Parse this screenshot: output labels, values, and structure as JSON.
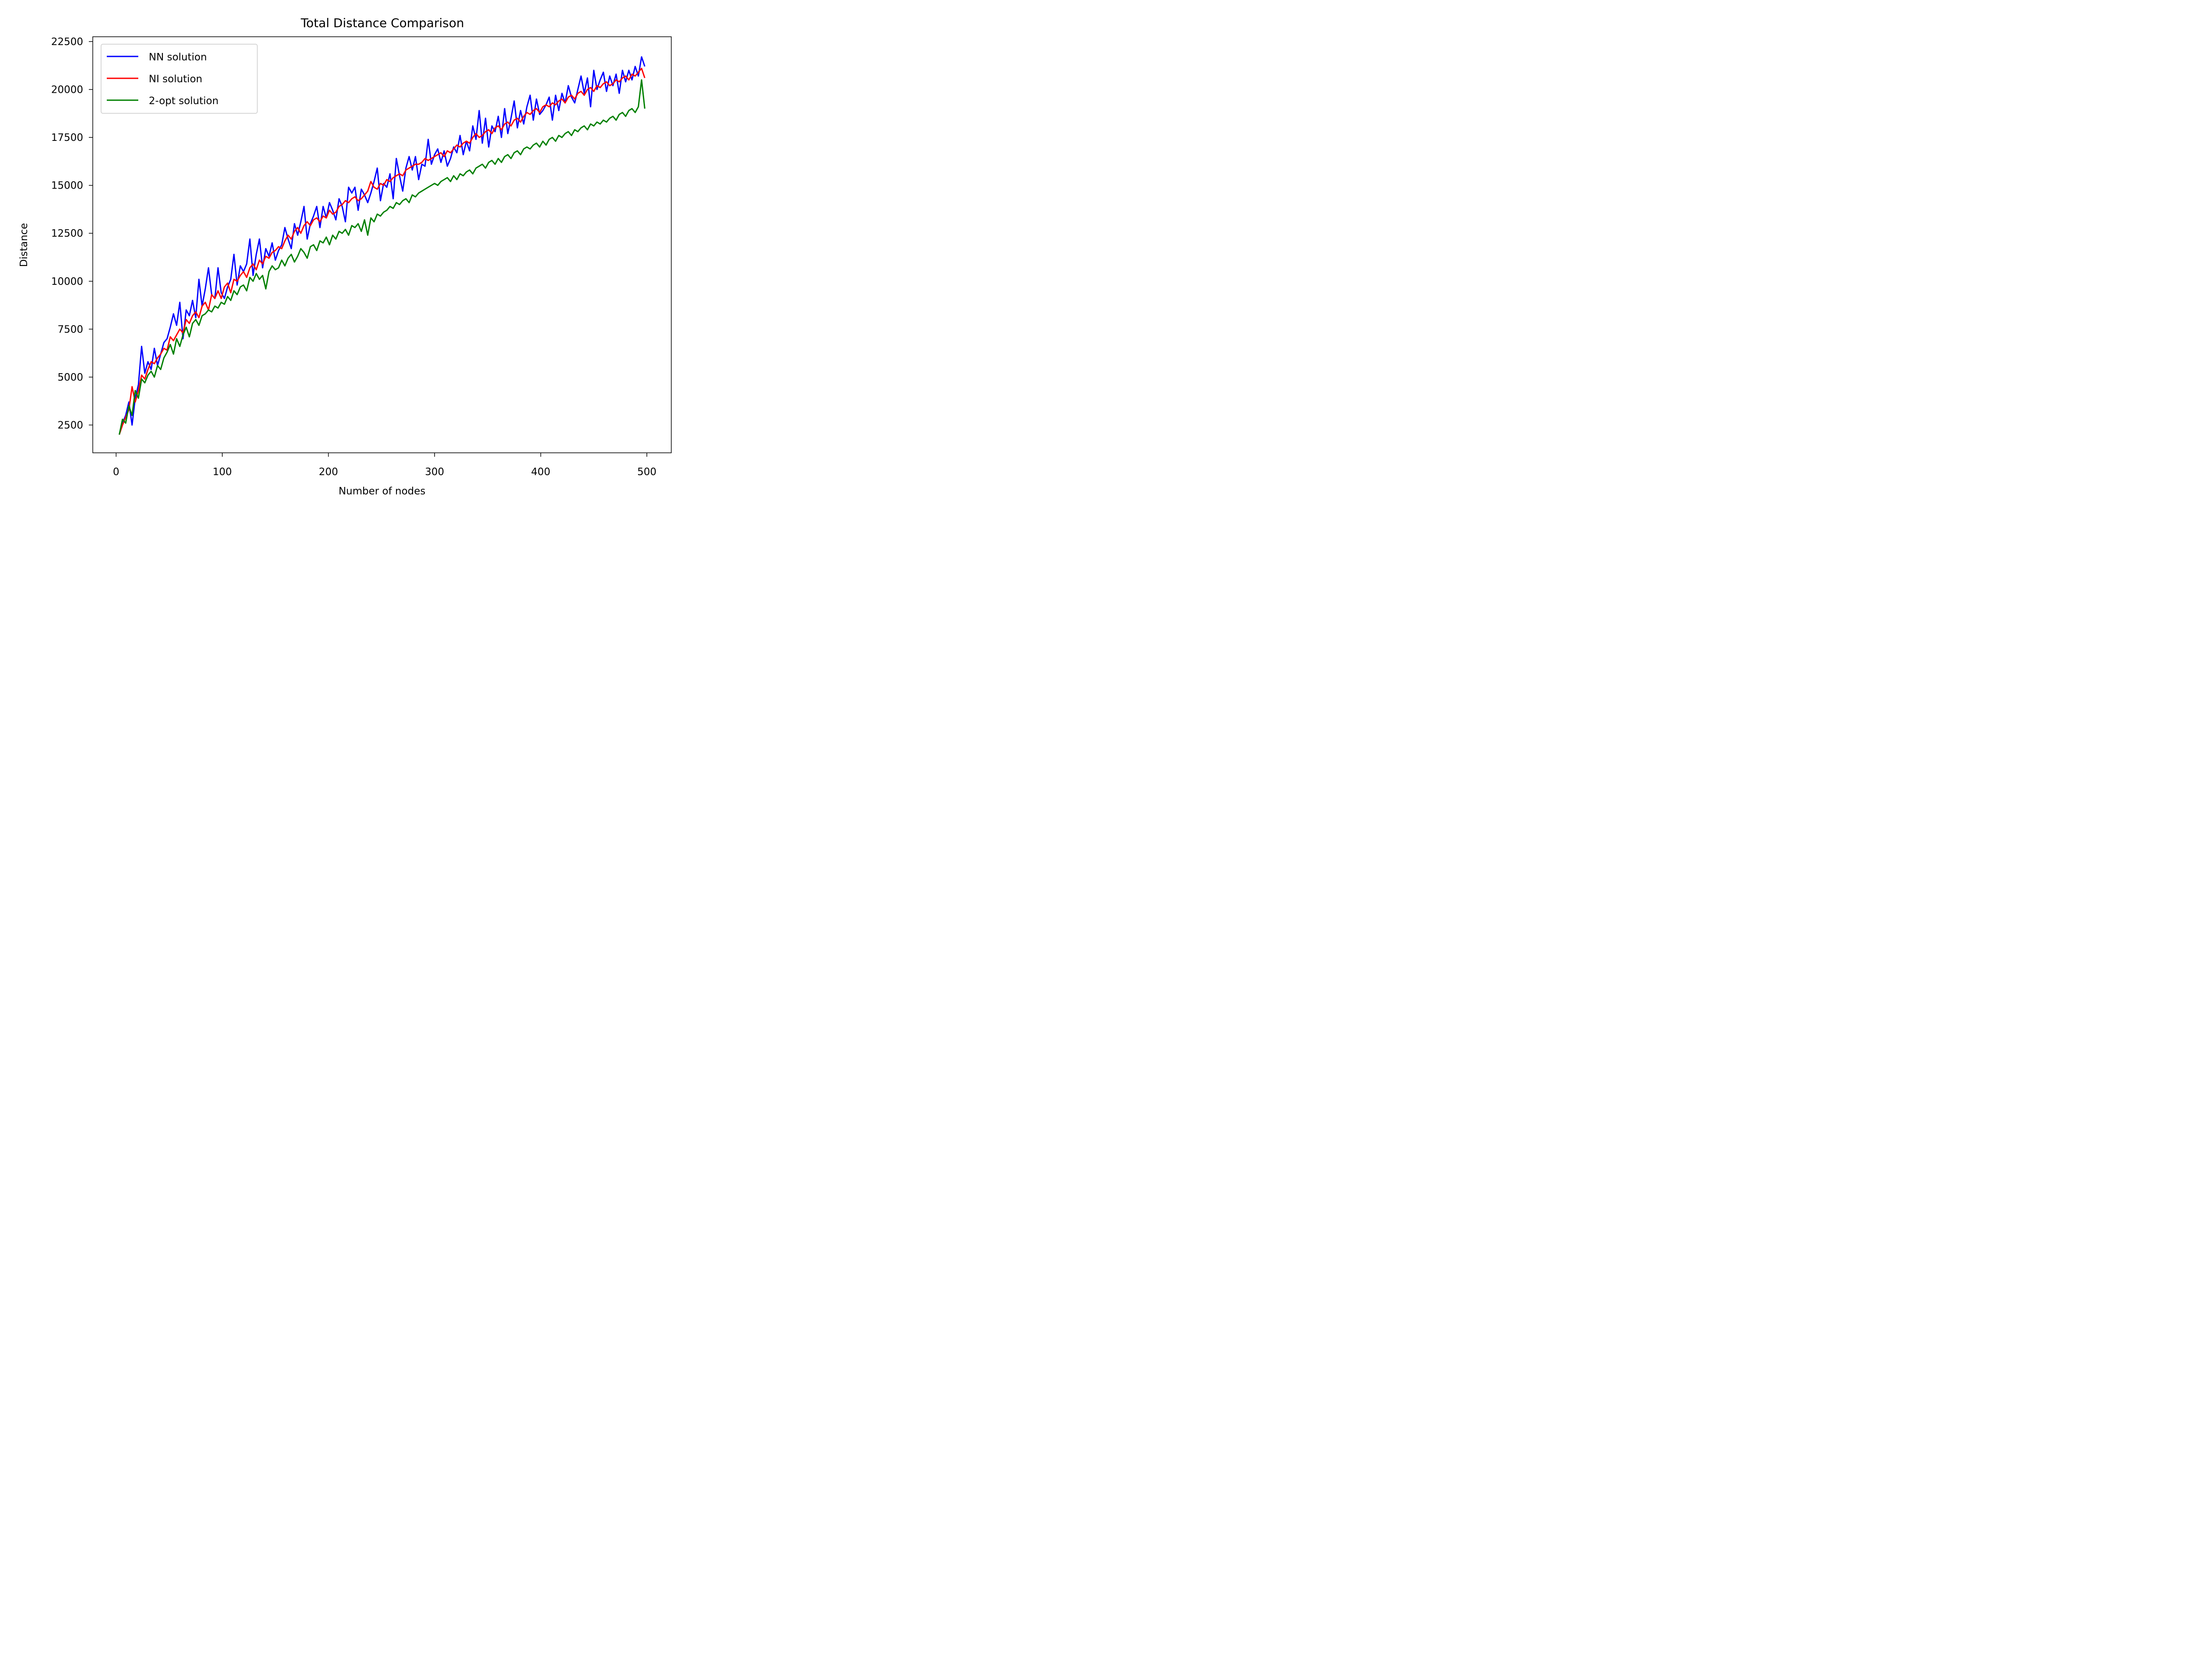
{
  "chart_data": {
    "type": "line",
    "title": "Total Distance Comparison",
    "xlabel": "Number of nodes",
    "ylabel": "Distance",
    "xlim": [
      -22,
      523
    ],
    "ylim": [
      1050,
      22750
    ],
    "xticks": [
      0,
      100,
      200,
      300,
      400,
      500
    ],
    "yticks": [
      2500,
      5000,
      7500,
      10000,
      12500,
      15000,
      17500,
      20000,
      22500
    ],
    "grid": false,
    "legend_position": "upper-left",
    "series": [
      {
        "name": "NN solution",
        "color": "#0000ff",
        "x": [
          3,
          6,
          9,
          12,
          15,
          18,
          21,
          24,
          27,
          30,
          33,
          36,
          39,
          42,
          45,
          48,
          51,
          54,
          57,
          60,
          63,
          66,
          69,
          72,
          75,
          78,
          81,
          84,
          87,
          90,
          93,
          96,
          99,
          102,
          105,
          108,
          111,
          114,
          117,
          120,
          123,
          126,
          129,
          132,
          135,
          138,
          141,
          144,
          147,
          150,
          153,
          156,
          159,
          162,
          165,
          168,
          171,
          174,
          177,
          180,
          183,
          186,
          189,
          192,
          195,
          198,
          201,
          204,
          207,
          210,
          213,
          216,
          219,
          222,
          225,
          228,
          231,
          234,
          237,
          240,
          243,
          246,
          249,
          252,
          255,
          258,
          261,
          264,
          267,
          270,
          273,
          276,
          279,
          282,
          285,
          288,
          291,
          294,
          297,
          300,
          303,
          306,
          309,
          312,
          315,
          318,
          321,
          324,
          327,
          330,
          333,
          336,
          339,
          342,
          345,
          348,
          351,
          354,
          357,
          360,
          363,
          366,
          369,
          372,
          375,
          378,
          381,
          384,
          387,
          390,
          393,
          396,
          399,
          402,
          405,
          408,
          411,
          414,
          417,
          420,
          423,
          426,
          429,
          432,
          435,
          438,
          441,
          444,
          447,
          450,
          453,
          456,
          459,
          462,
          465,
          468,
          471,
          474,
          477,
          480,
          483,
          486,
          489,
          492,
          495,
          498
        ],
        "values": [
          2000,
          2600,
          3000,
          3700,
          2500,
          3900,
          4600,
          6600,
          5200,
          5800,
          5400,
          6500,
          5600,
          6200,
          6800,
          7000,
          7600,
          8300,
          7700,
          8900,
          7000,
          8500,
          8200,
          9000,
          8100,
          10100,
          8700,
          9600,
          10700,
          9300,
          9100,
          10700,
          9400,
          9100,
          9700,
          10100,
          11400,
          9800,
          10800,
          10500,
          10900,
          12200,
          10300,
          11400,
          12200,
          10700,
          11700,
          11300,
          12000,
          11100,
          11600,
          11900,
          12800,
          12200,
          11700,
          13000,
          12400,
          13100,
          13900,
          12200,
          13000,
          13400,
          13900,
          12800,
          13900,
          13300,
          14100,
          13700,
          13200,
          14300,
          13900,
          13100,
          14900,
          14600,
          14900,
          13700,
          14800,
          14500,
          14100,
          14600,
          15200,
          15900,
          14200,
          15100,
          14900,
          15600,
          14300,
          16400,
          15500,
          14700,
          15900,
          16500,
          15800,
          16500,
          15300,
          16100,
          16000,
          17400,
          16100,
          16600,
          16900,
          16200,
          16800,
          16000,
          16400,
          17000,
          16700,
          17600,
          16600,
          17300,
          16800,
          18100,
          17400,
          18900,
          17200,
          18500,
          17000,
          18100,
          17800,
          18600,
          17500,
          19000,
          17700,
          18500,
          19400,
          18000,
          18900,
          18200,
          19100,
          19700,
          18400,
          19500,
          18700,
          18900,
          19200,
          19600,
          18400,
          19700,
          18900,
          19800,
          19300,
          20200,
          19600,
          19300,
          20000,
          20700,
          19800,
          20600,
          19100,
          21000,
          20000,
          20500,
          20900,
          19900,
          20700,
          20200,
          20800,
          19800,
          21000,
          20400,
          21000,
          20500,
          21200,
          20700,
          21700,
          21200
        ]
      },
      {
        "name": "NI solution",
        "color": "#ff0000",
        "x": [
          3,
          6,
          9,
          12,
          15,
          18,
          21,
          24,
          27,
          30,
          33,
          36,
          39,
          42,
          45,
          48,
          51,
          54,
          57,
          60,
          63,
          66,
          69,
          72,
          75,
          78,
          81,
          84,
          87,
          90,
          93,
          96,
          99,
          102,
          105,
          108,
          111,
          114,
          117,
          120,
          123,
          126,
          129,
          132,
          135,
          138,
          141,
          144,
          147,
          150,
          153,
          156,
          159,
          162,
          165,
          168,
          171,
          174,
          177,
          180,
          183,
          186,
          189,
          192,
          195,
          198,
          201,
          204,
          207,
          210,
          213,
          216,
          219,
          222,
          225,
          228,
          231,
          234,
          237,
          240,
          243,
          246,
          249,
          252,
          255,
          258,
          261,
          264,
          267,
          270,
          273,
          276,
          279,
          282,
          285,
          288,
          291,
          294,
          297,
          300,
          303,
          306,
          309,
          312,
          315,
          318,
          321,
          324,
          327,
          330,
          333,
          336,
          339,
          342,
          345,
          348,
          351,
          354,
          357,
          360,
          363,
          366,
          369,
          372,
          375,
          378,
          381,
          384,
          387,
          390,
          393,
          396,
          399,
          402,
          405,
          408,
          411,
          414,
          417,
          420,
          423,
          426,
          429,
          432,
          435,
          438,
          441,
          444,
          447,
          450,
          453,
          456,
          459,
          462,
          465,
          468,
          471,
          474,
          477,
          480,
          483,
          486,
          489,
          492,
          495,
          498
        ],
        "values": [
          2000,
          2500,
          2900,
          3300,
          4500,
          3700,
          4300,
          5100,
          4900,
          5400,
          5800,
          5700,
          6000,
          6200,
          6500,
          6400,
          7100,
          6900,
          7200,
          7500,
          7300,
          8000,
          7800,
          8200,
          8400,
          8100,
          8700,
          8900,
          8500,
          9300,
          9100,
          9500,
          9100,
          9700,
          9900,
          9400,
          10100,
          10000,
          10300,
          10500,
          10200,
          10700,
          10900,
          10600,
          11100,
          10900,
          11300,
          11200,
          11500,
          11600,
          11800,
          11700,
          12100,
          12400,
          12200,
          12600,
          12800,
          12500,
          12900,
          13100,
          12900,
          13200,
          13300,
          13100,
          13400,
          13300,
          13700,
          13500,
          13600,
          13900,
          14000,
          14200,
          14100,
          14300,
          14400,
          14200,
          14300,
          14500,
          14700,
          15200,
          14900,
          14800,
          15100,
          15000,
          15300,
          15200,
          15400,
          15500,
          15600,
          15500,
          15800,
          15900,
          16000,
          16100,
          16100,
          16200,
          16400,
          16300,
          16400,
          16500,
          16600,
          16700,
          16500,
          16800,
          16700,
          16900,
          17100,
          17000,
          17200,
          17300,
          17200,
          17500,
          17700,
          17500,
          17600,
          17800,
          17900,
          17700,
          18000,
          18100,
          17900,
          18200,
          18300,
          18100,
          18400,
          18500,
          18300,
          18600,
          18800,
          18700,
          18900,
          19000,
          18800,
          19100,
          19200,
          19100,
          19300,
          19200,
          19400,
          19500,
          19300,
          19600,
          19700,
          19500,
          19800,
          19900,
          19700,
          20000,
          20100,
          19900,
          20200,
          20100,
          20300,
          20400,
          20200,
          20300,
          20500,
          20400,
          20600,
          20700,
          20500,
          20800,
          20700,
          20900,
          21100,
          20600
        ]
      },
      {
        "name": "2-opt solution",
        "color": "#008000",
        "x": [
          3,
          6,
          9,
          12,
          15,
          18,
          21,
          24,
          27,
          30,
          33,
          36,
          39,
          42,
          45,
          48,
          51,
          54,
          57,
          60,
          63,
          66,
          69,
          72,
          75,
          78,
          81,
          84,
          87,
          90,
          93,
          96,
          99,
          102,
          105,
          108,
          111,
          114,
          117,
          120,
          123,
          126,
          129,
          132,
          135,
          138,
          141,
          144,
          147,
          150,
          153,
          156,
          159,
          162,
          165,
          168,
          171,
          174,
          177,
          180,
          183,
          186,
          189,
          192,
          195,
          198,
          201,
          204,
          207,
          210,
          213,
          216,
          219,
          222,
          225,
          228,
          231,
          234,
          237,
          240,
          243,
          246,
          249,
          252,
          255,
          258,
          261,
          264,
          267,
          270,
          273,
          276,
          279,
          282,
          285,
          288,
          291,
          294,
          297,
          300,
          303,
          306,
          309,
          312,
          315,
          318,
          321,
          324,
          327,
          330,
          333,
          336,
          339,
          342,
          345,
          348,
          351,
          354,
          357,
          360,
          363,
          366,
          369,
          372,
          375,
          378,
          381,
          384,
          387,
          390,
          393,
          396,
          399,
          402,
          405,
          408,
          411,
          414,
          417,
          420,
          423,
          426,
          429,
          432,
          435,
          438,
          441,
          444,
          447,
          450,
          453,
          456,
          459,
          462,
          465,
          468,
          471,
          474,
          477,
          480,
          483,
          486,
          489,
          492,
          495,
          498
        ],
        "values": [
          2000,
          2800,
          2600,
          3500,
          3000,
          4300,
          3900,
          4900,
          4700,
          5100,
          5300,
          5000,
          5600,
          5400,
          6000,
          6300,
          6700,
          6200,
          7000,
          6600,
          7200,
          7600,
          7100,
          7800,
          8000,
          7700,
          8200,
          8300,
          8500,
          8400,
          8700,
          8600,
          8900,
          8800,
          9200,
          9000,
          9500,
          9300,
          9700,
          9800,
          9500,
          10200,
          10000,
          10400,
          10100,
          10300,
          9600,
          10500,
          10800,
          10600,
          10700,
          11100,
          10800,
          11200,
          11400,
          11000,
          11300,
          11700,
          11500,
          11200,
          11800,
          11900,
          11600,
          12100,
          12000,
          12300,
          11900,
          12400,
          12200,
          12600,
          12500,
          12700,
          12400,
          12900,
          12800,
          13000,
          12600,
          13200,
          12400,
          13300,
          13100,
          13500,
          13400,
          13600,
          13700,
          13900,
          13800,
          14100,
          14000,
          14200,
          14300,
          14100,
          14500,
          14400,
          14600,
          14700,
          14800,
          14900,
          15000,
          15100,
          15000,
          15200,
          15300,
          15400,
          15200,
          15500,
          15300,
          15600,
          15500,
          15700,
          15800,
          15600,
          15900,
          16000,
          16100,
          15900,
          16200,
          16300,
          16100,
          16400,
          16200,
          16500,
          16600,
          16400,
          16700,
          16800,
          16600,
          16900,
          17000,
          16900,
          17100,
          17200,
          17000,
          17300,
          17100,
          17400,
          17500,
          17300,
          17600,
          17500,
          17700,
          17800,
          17600,
          17900,
          17800,
          18000,
          18100,
          17900,
          18200,
          18100,
          18300,
          18200,
          18400,
          18300,
          18500,
          18600,
          18400,
          18700,
          18800,
          18600,
          18900,
          19000,
          18800,
          19100,
          20500,
          19000
        ]
      }
    ]
  }
}
